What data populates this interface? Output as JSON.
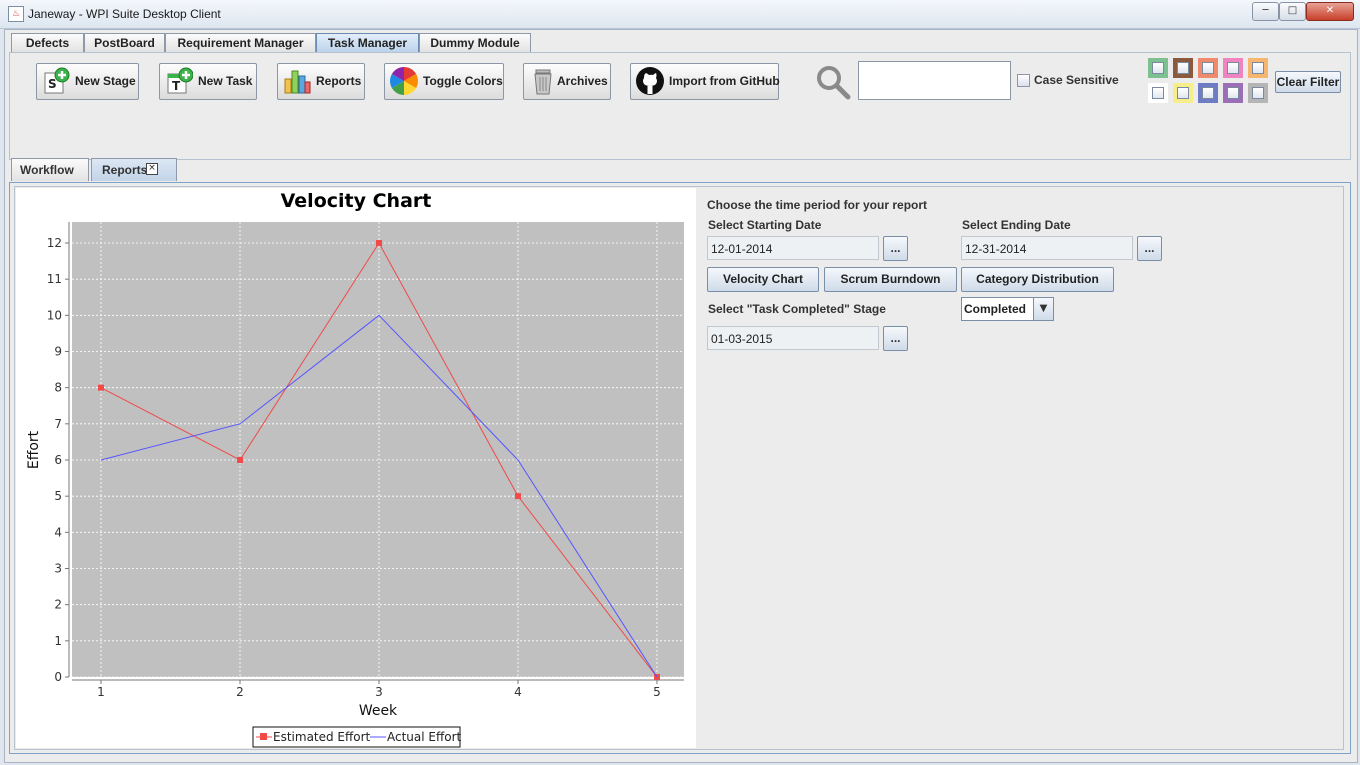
{
  "window": {
    "title": "Janeway - WPI Suite Desktop Client"
  },
  "module_tabs": [
    {
      "label": "Defects"
    },
    {
      "label": "PostBoard"
    },
    {
      "label": "Requirement Manager"
    },
    {
      "label": "Task Manager",
      "active": true
    },
    {
      "label": "Dummy Module"
    }
  ],
  "toolbar": {
    "new_stage": "New Stage",
    "new_task": "New Task",
    "reports": "Reports",
    "toggle_colors": "Toggle Colors",
    "archives": "Archives",
    "import_github": "Import from GitHub",
    "search_value": "",
    "case_sensitive": "Case Sensitive",
    "clear_filter": "Clear Filter",
    "filter_colors": [
      "#7cc18f",
      "#8b5a3c",
      "#f08a6c",
      "#ef84c0",
      "#f7b66f",
      "#ffffff",
      "#f6ee8a",
      "#6e7cc6",
      "#9a6fb7",
      "#b5b5b5"
    ]
  },
  "sub_tabs": [
    {
      "label": "Workflow"
    },
    {
      "label": "Reports",
      "active": true,
      "closable": true
    }
  ],
  "chart_data": {
    "type": "line",
    "title": "Velocity Chart",
    "xlabel": "Week",
    "ylabel": "Effort",
    "categories": [
      1,
      2,
      3,
      4,
      5
    ],
    "ylim": [
      0,
      12
    ],
    "yticks": [
      0,
      1,
      2,
      3,
      4,
      5,
      6,
      7,
      8,
      9,
      10,
      11,
      12
    ],
    "grid": true,
    "legend": "bottom",
    "series": [
      {
        "name": "Estimated Effort",
        "values": [
          8,
          6,
          12,
          5,
          0
        ],
        "color": "#f04a4a",
        "marker": "square"
      },
      {
        "name": "Actual Effort",
        "values": [
          6,
          7,
          10,
          6,
          0
        ],
        "color": "#5555ff",
        "marker": "none"
      }
    ]
  },
  "report": {
    "heading": "Choose the time period for your report",
    "start_label": "Select Starting Date",
    "start_value": "12-01-2014",
    "end_label": "Select Ending Date",
    "end_value": "12-31-2014",
    "dots": "...",
    "velocity_btn": "Velocity Chart",
    "scrum_btn": "Scrum Burndown",
    "category_btn": "Category Distribution",
    "stage_label": "Select \"Task Completed\" Stage",
    "stage_value": "Completed",
    "completed_date": "01-03-2015"
  }
}
